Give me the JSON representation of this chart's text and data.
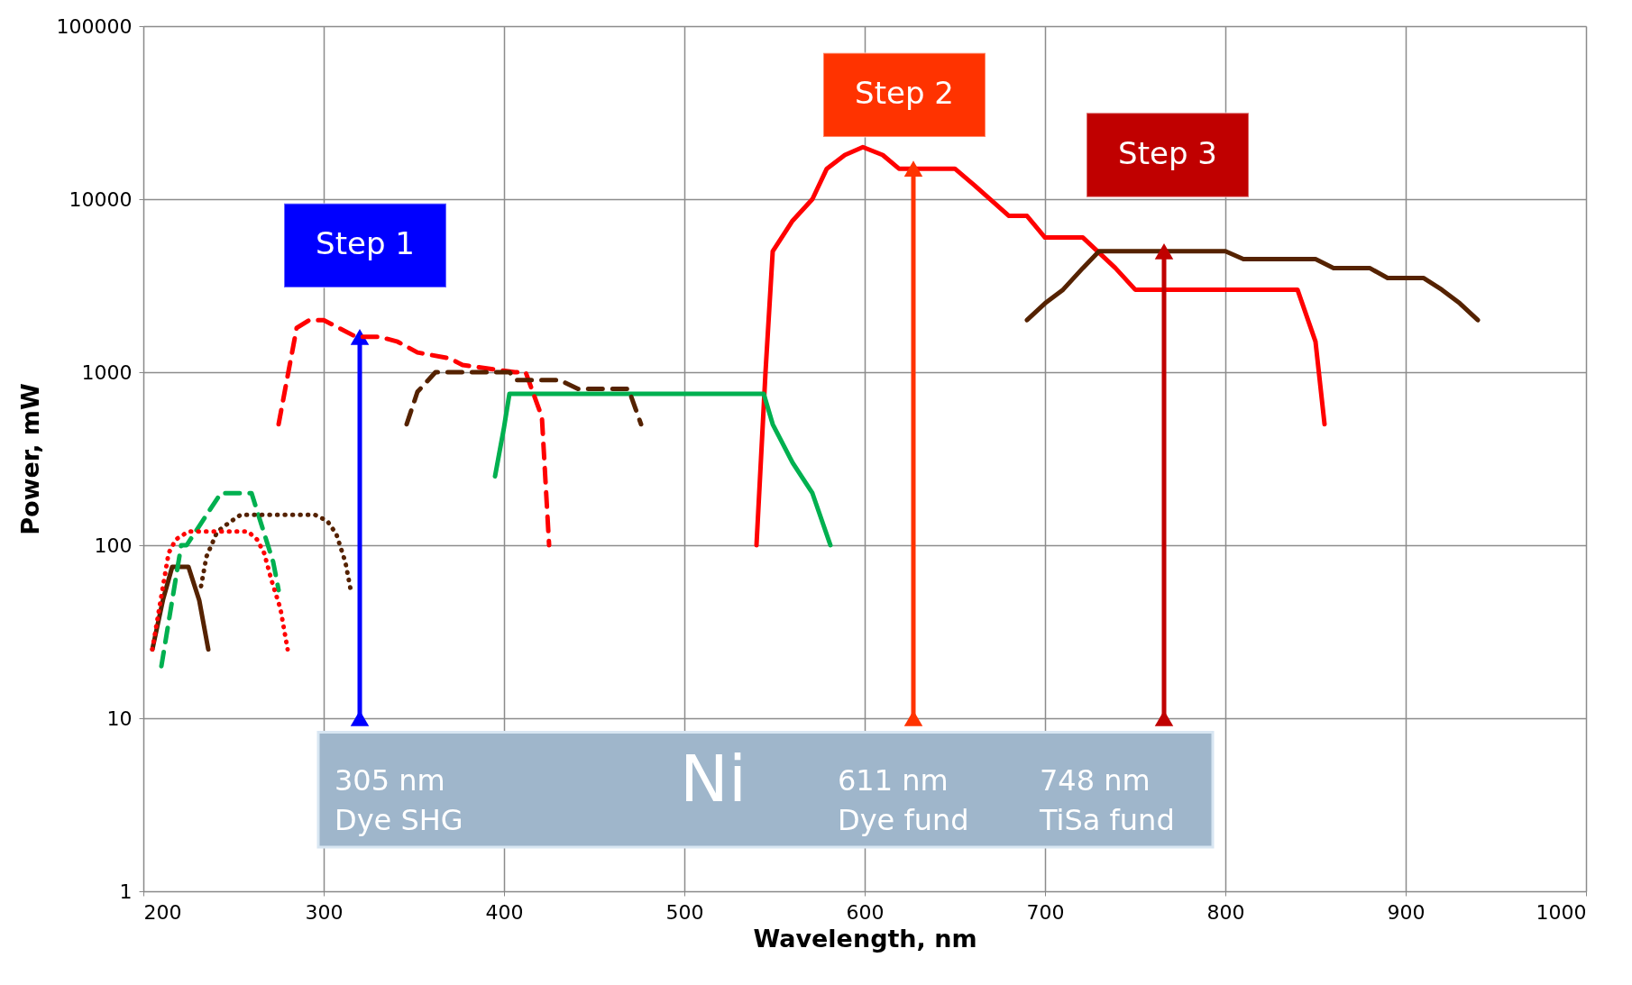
{
  "chart_data": {
    "type": "line",
    "xlabel": "Wavelength, nm",
    "ylabel": "Power, mW",
    "xlim": [
      200,
      1000
    ],
    "xticks": [
      200,
      300,
      400,
      500,
      600,
      700,
      800,
      900,
      1000
    ],
    "ylim": [
      1,
      100000
    ],
    "yticks": [
      1,
      10,
      100,
      1000,
      10000,
      100000
    ],
    "log": "y",
    "grid": true,
    "series": [
      {
        "color": "#ff0000",
        "line_style": "solid",
        "x": [
          540,
          545,
          549,
          560,
          571,
          579,
          589,
          599,
          610,
          619,
          650,
          661,
          680,
          690,
          700,
          721,
          739,
          750,
          840,
          850,
          855
        ],
        "values": [
          100,
          1000,
          5000,
          7500,
          10000,
          15000,
          18000,
          20000,
          18000,
          15000,
          15000,
          12000,
          8000,
          8000,
          6000,
          6000,
          4000,
          3000,
          3000,
          1500,
          500
        ]
      },
      {
        "color": "#552200",
        "line_style": "solid",
        "x": [
          690,
          700,
          710,
          721,
          730,
          800,
          810,
          850,
          860,
          880,
          890,
          910,
          920,
          930,
          940
        ],
        "values": [
          2000,
          2500,
          3000,
          4000,
          5000,
          5000,
          4500,
          4500,
          4000,
          4000,
          3500,
          3500,
          3000,
          2500,
          2000
        ]
      },
      {
        "color": "#00b050",
        "line_style": "solid",
        "x": [
          395,
          400,
          403,
          544,
          549,
          560,
          571,
          581
        ],
        "values": [
          250,
          480,
          750,
          750,
          500,
          300,
          200,
          100
        ]
      },
      {
        "color": "#ff0000",
        "line_style": "dashed",
        "x": [
          275,
          280,
          285,
          292,
          300,
          318,
          331,
          341,
          352,
          370,
          377,
          406,
          412,
          421,
          425
        ],
        "values": [
          500,
          950,
          1800,
          2000,
          2000,
          1600,
          1600,
          1500,
          1300,
          1200,
          1100,
          1000,
          1000,
          550,
          100
        ]
      },
      {
        "color": "#552200",
        "line_style": "dashed",
        "x": [
          346,
          352,
          362,
          403,
          407,
          431,
          441,
          469,
          476
        ],
        "values": [
          500,
          770,
          1000,
          1000,
          900,
          900,
          800,
          800,
          500
        ]
      },
      {
        "color": "#00b050",
        "line_style": "dashed",
        "x": [
          210,
          221,
          224,
          243,
          260,
          272,
          275
        ],
        "values": [
          20,
          100,
          100,
          200,
          200,
          80,
          55
        ]
      },
      {
        "color": "#552200",
        "line_style": "dotted",
        "x": [
          232,
          235,
          241,
          248,
          254,
          295,
          302,
          307,
          312,
          315
        ],
        "values": [
          58,
          86,
          120,
          136,
          150,
          150,
          138,
          116,
          80,
          55
        ]
      },
      {
        "color": "#ff0000",
        "line_style": "dotted",
        "x": [
          205,
          210,
          214,
          218,
          225,
          258,
          263,
          267,
          271,
          276,
          280
        ],
        "values": [
          25,
          51,
          90,
          108,
          120,
          120,
          108,
          90,
          63,
          43,
          25
        ]
      },
      {
        "color": "#552200",
        "line_style": "solid",
        "x": [
          205,
          211,
          216,
          225,
          231,
          236
        ],
        "values": [
          25,
          49,
          75,
          75,
          48,
          25
        ]
      },
      {
        "color": "#0000ff",
        "line_style": "solid",
        "marker": "triangle",
        "x": [
          320,
          320
        ],
        "values": [
          10,
          1600
        ]
      },
      {
        "color": "#ff3300",
        "line_style": "solid",
        "marker": "triangle",
        "x": [
          627,
          627
        ],
        "values": [
          10,
          15000
        ]
      },
      {
        "color": "#c00000",
        "line_style": "solid",
        "marker": "triangle",
        "x": [
          766,
          766
        ],
        "values": [
          10,
          5000
        ]
      }
    ],
    "annotations": [
      "Step 1",
      "Step 2",
      "Step 3",
      "305 nm\nDye SHG",
      "Ni",
      "611 nm\nDye fund",
      "748 nm\nTiSa fund"
    ]
  }
}
